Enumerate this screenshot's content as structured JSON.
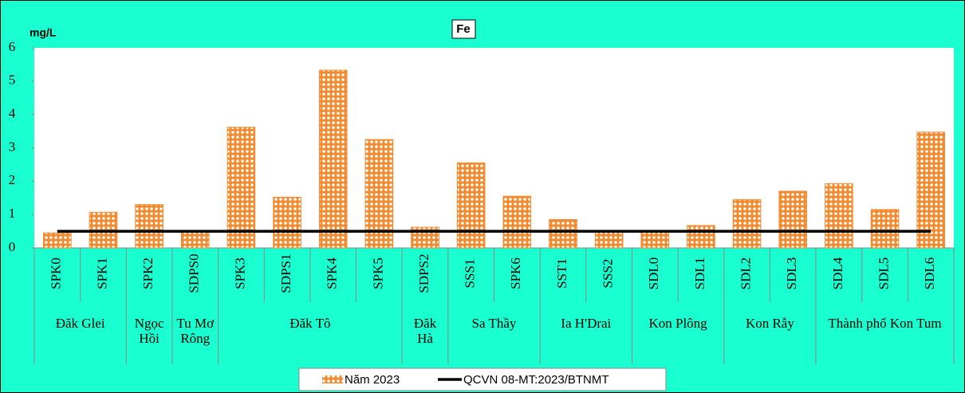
{
  "chart_data": {
    "type": "bar",
    "title": "Fe",
    "y_label": "mg/L",
    "groups": [
      {
        "name": "Đăk Glei",
        "categories": [
          "SPK0",
          "SPK1"
        ]
      },
      {
        "name": "Ngọc Hồi",
        "categories": [
          "SPK2"
        ]
      },
      {
        "name": "Tu Mơ Rông",
        "categories": [
          "SDPS0"
        ]
      },
      {
        "name": "Đăk Tô",
        "categories": [
          "SPK3",
          "SDPS1",
          "SPK4",
          "SPK5"
        ]
      },
      {
        "name": "Đăk Hà",
        "categories": [
          "SDPS2"
        ]
      },
      {
        "name": "Sa Thầy",
        "categories": [
          "SSS1",
          "SPK6"
        ]
      },
      {
        "name": "Ia H'Drai",
        "categories": [
          "SST1",
          "SSS2"
        ]
      },
      {
        "name": "Kon Plông",
        "categories": [
          "SDL0",
          "SDL1"
        ]
      },
      {
        "name": "Kon Rẫy",
        "categories": [
          "SDL2",
          "SDL3"
        ]
      },
      {
        "name": "Thành phố Kon Tum",
        "categories": [
          "SDL4",
          "SDL5",
          "SDL6"
        ]
      }
    ],
    "series": [
      {
        "name": "Năm 2023",
        "type": "bar",
        "color": "#f28a30",
        "values": [
          0.45,
          1.07,
          1.3,
          0.5,
          3.62,
          1.52,
          5.33,
          3.25,
          0.62,
          2.55,
          1.55,
          0.85,
          0.5,
          0.5,
          0.67,
          1.45,
          1.7,
          1.93,
          1.15,
          3.47
        ]
      },
      {
        "name": "QCVN 08-MT:2023/BTNMT",
        "type": "line",
        "color": "#000000",
        "values": [
          0.5,
          0.5,
          0.5,
          0.5,
          0.5,
          0.5,
          0.5,
          0.5,
          0.5,
          0.5,
          0.5,
          0.5,
          0.5,
          0.5,
          0.5,
          0.5,
          0.5,
          0.5,
          0.5,
          0.5
        ]
      }
    ],
    "ylim": [
      0,
      6
    ],
    "yticks": [
      0,
      1,
      2,
      3,
      4,
      5,
      6
    ],
    "legend": "bottom"
  }
}
